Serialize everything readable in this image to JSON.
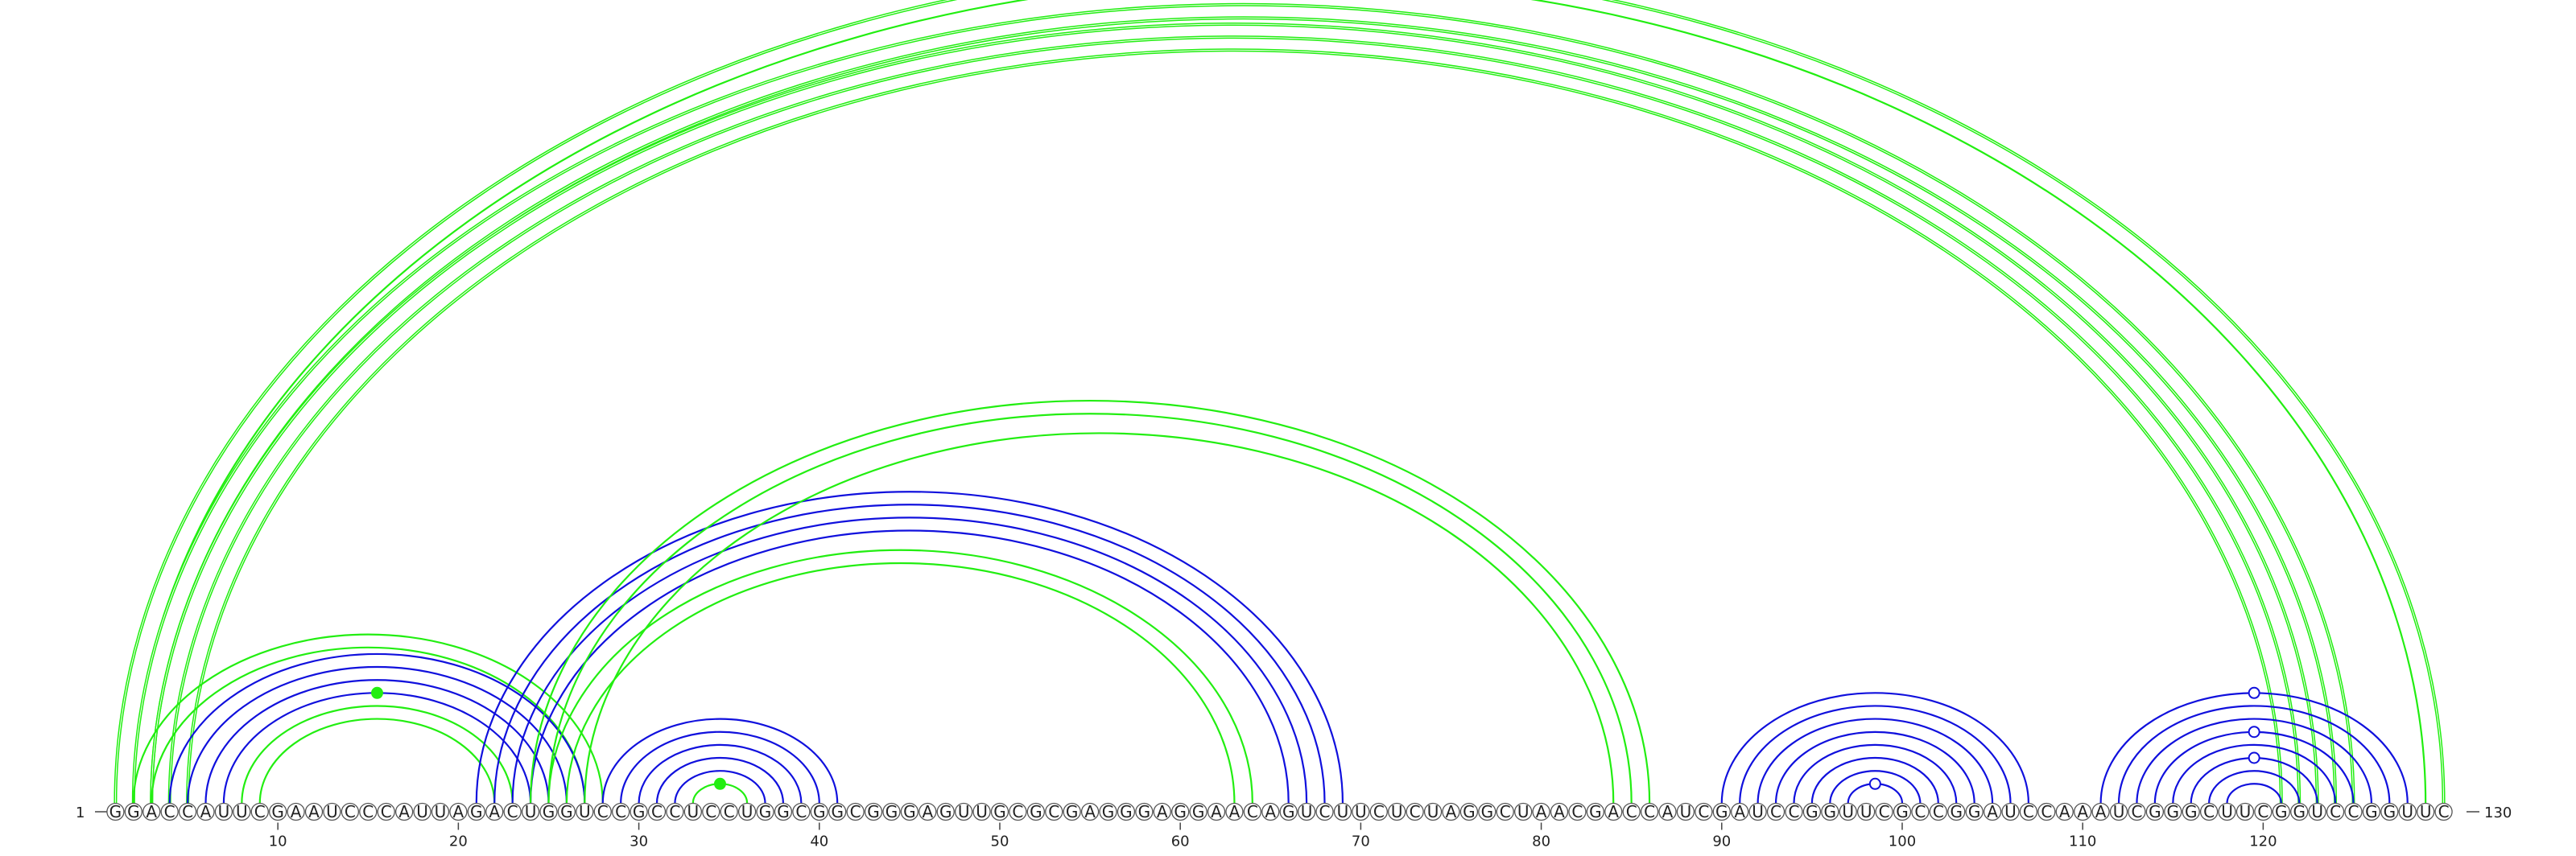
{
  "diagram": {
    "type": "rna-arc-diagram",
    "sequence": "GGACCAUUCGAAUCCCAUUAGACUGGUCCGCCUCCUGGCGGCGGGAGUUGCGCGAGGGAGGAACAGUCUUCUCUAGGCUAACGACCAUCGAUCCGGUUCGCCGGAUCCAAAUCGGGCUUCGGUCCGGUUC",
    "start_label": "1",
    "end_label": "130",
    "tick_labels": [
      "10",
      "20",
      "30",
      "40",
      "50",
      "60",
      "70",
      "80",
      "90",
      "100",
      "110",
      "120"
    ],
    "colors": {
      "green": "#22ee11",
      "blue": "#1010dd"
    }
  },
  "chart_data": {
    "type": "arc",
    "length": 130,
    "tick_positions": [
      10,
      20,
      30,
      40,
      50,
      60,
      70,
      80,
      90,
      100,
      110,
      120
    ],
    "arcs": [
      {
        "i": 1,
        "j": 130,
        "color": "green",
        "weight": 2
      },
      {
        "i": 2,
        "j": 129,
        "color": "green",
        "weight": 1
      },
      {
        "i": 2,
        "j": 125,
        "color": "green",
        "weight": 2
      },
      {
        "i": 3,
        "j": 124,
        "color": "green",
        "weight": 2
      },
      {
        "i": 3,
        "j": 123,
        "color": "green",
        "weight": 2
      },
      {
        "i": 4,
        "j": 122,
        "color": "green",
        "weight": 2
      },
      {
        "i": 5,
        "j": 121,
        "color": "green",
        "weight": 2
      },
      {
        "i": 2,
        "j": 28,
        "color": "green",
        "weight": 1
      },
      {
        "i": 3,
        "j": 27,
        "color": "green",
        "weight": 1
      },
      {
        "i": 4,
        "j": 27,
        "color": "blue",
        "weight": 1
      },
      {
        "i": 5,
        "j": 26,
        "color": "blue",
        "weight": 1
      },
      {
        "i": 6,
        "j": 25,
        "color": "blue",
        "weight": 1
      },
      {
        "i": 7,
        "j": 24,
        "color": "blue",
        "weight": 1
      },
      {
        "i": 8,
        "j": 23,
        "color": "green",
        "weight": 1
      },
      {
        "i": 9,
        "j": 22,
        "color": "green",
        "weight": 1
      },
      {
        "i": 21,
        "j": 69,
        "color": "blue",
        "weight": 1
      },
      {
        "i": 22,
        "j": 68,
        "color": "blue",
        "weight": 1
      },
      {
        "i": 23,
        "j": 67,
        "color": "blue",
        "weight": 1
      },
      {
        "i": 24,
        "j": 66,
        "color": "blue",
        "weight": 1
      },
      {
        "i": 25,
        "j": 64,
        "color": "green",
        "weight": 1
      },
      {
        "i": 26,
        "j": 63,
        "color": "green",
        "weight": 1
      },
      {
        "i": 24,
        "j": 86,
        "color": "green",
        "weight": 1
      },
      {
        "i": 25,
        "j": 85,
        "color": "green",
        "weight": 1
      },
      {
        "i": 27,
        "j": 84,
        "color": "green",
        "weight": 1
      },
      {
        "i": 28,
        "j": 41,
        "color": "blue",
        "weight": 1
      },
      {
        "i": 29,
        "j": 40,
        "color": "blue",
        "weight": 1
      },
      {
        "i": 30,
        "j": 39,
        "color": "blue",
        "weight": 1
      },
      {
        "i": 31,
        "j": 38,
        "color": "blue",
        "weight": 1
      },
      {
        "i": 32,
        "j": 37,
        "color": "blue",
        "weight": 1
      },
      {
        "i": 33,
        "j": 36,
        "color": "green",
        "weight": 1
      },
      {
        "i": 90,
        "j": 107,
        "color": "blue",
        "weight": 1
      },
      {
        "i": 91,
        "j": 106,
        "color": "blue",
        "weight": 1
      },
      {
        "i": 92,
        "j": 105,
        "color": "blue",
        "weight": 1
      },
      {
        "i": 93,
        "j": 104,
        "color": "blue",
        "weight": 1
      },
      {
        "i": 94,
        "j": 103,
        "color": "blue",
        "weight": 1
      },
      {
        "i": 95,
        "j": 102,
        "color": "blue",
        "weight": 1
      },
      {
        "i": 96,
        "j": 101,
        "color": "blue",
        "weight": 1
      },
      {
        "i": 97,
        "j": 100,
        "color": "blue",
        "weight": 1
      },
      {
        "i": 111,
        "j": 128,
        "color": "blue",
        "weight": 1
      },
      {
        "i": 112,
        "j": 127,
        "color": "blue",
        "weight": 1
      },
      {
        "i": 113,
        "j": 126,
        "color": "blue",
        "weight": 1
      },
      {
        "i": 114,
        "j": 125,
        "color": "blue",
        "weight": 1
      },
      {
        "i": 115,
        "j": 124,
        "color": "blue",
        "weight": 1
      },
      {
        "i": 116,
        "j": 123,
        "color": "blue",
        "weight": 1
      },
      {
        "i": 117,
        "j": 122,
        "color": "blue",
        "weight": 1
      },
      {
        "i": 118,
        "j": 121,
        "color": "blue",
        "weight": 1
      }
    ],
    "markers": [
      {
        "at_arc": 0,
        "style": "hollow",
        "color": "green"
      },
      {
        "at_arc": 12,
        "style": "filled",
        "color": "green"
      },
      {
        "at_arc": 29,
        "style": "filled",
        "color": "green"
      },
      {
        "at_arc": 37,
        "style": "hollow",
        "color": "blue"
      },
      {
        "at_arc": 38,
        "style": "hollow",
        "color": "blue"
      },
      {
        "at_arc": 41,
        "style": "hollow",
        "color": "blue"
      },
      {
        "at_arc": 43,
        "style": "hollow",
        "color": "blue"
      }
    ]
  }
}
